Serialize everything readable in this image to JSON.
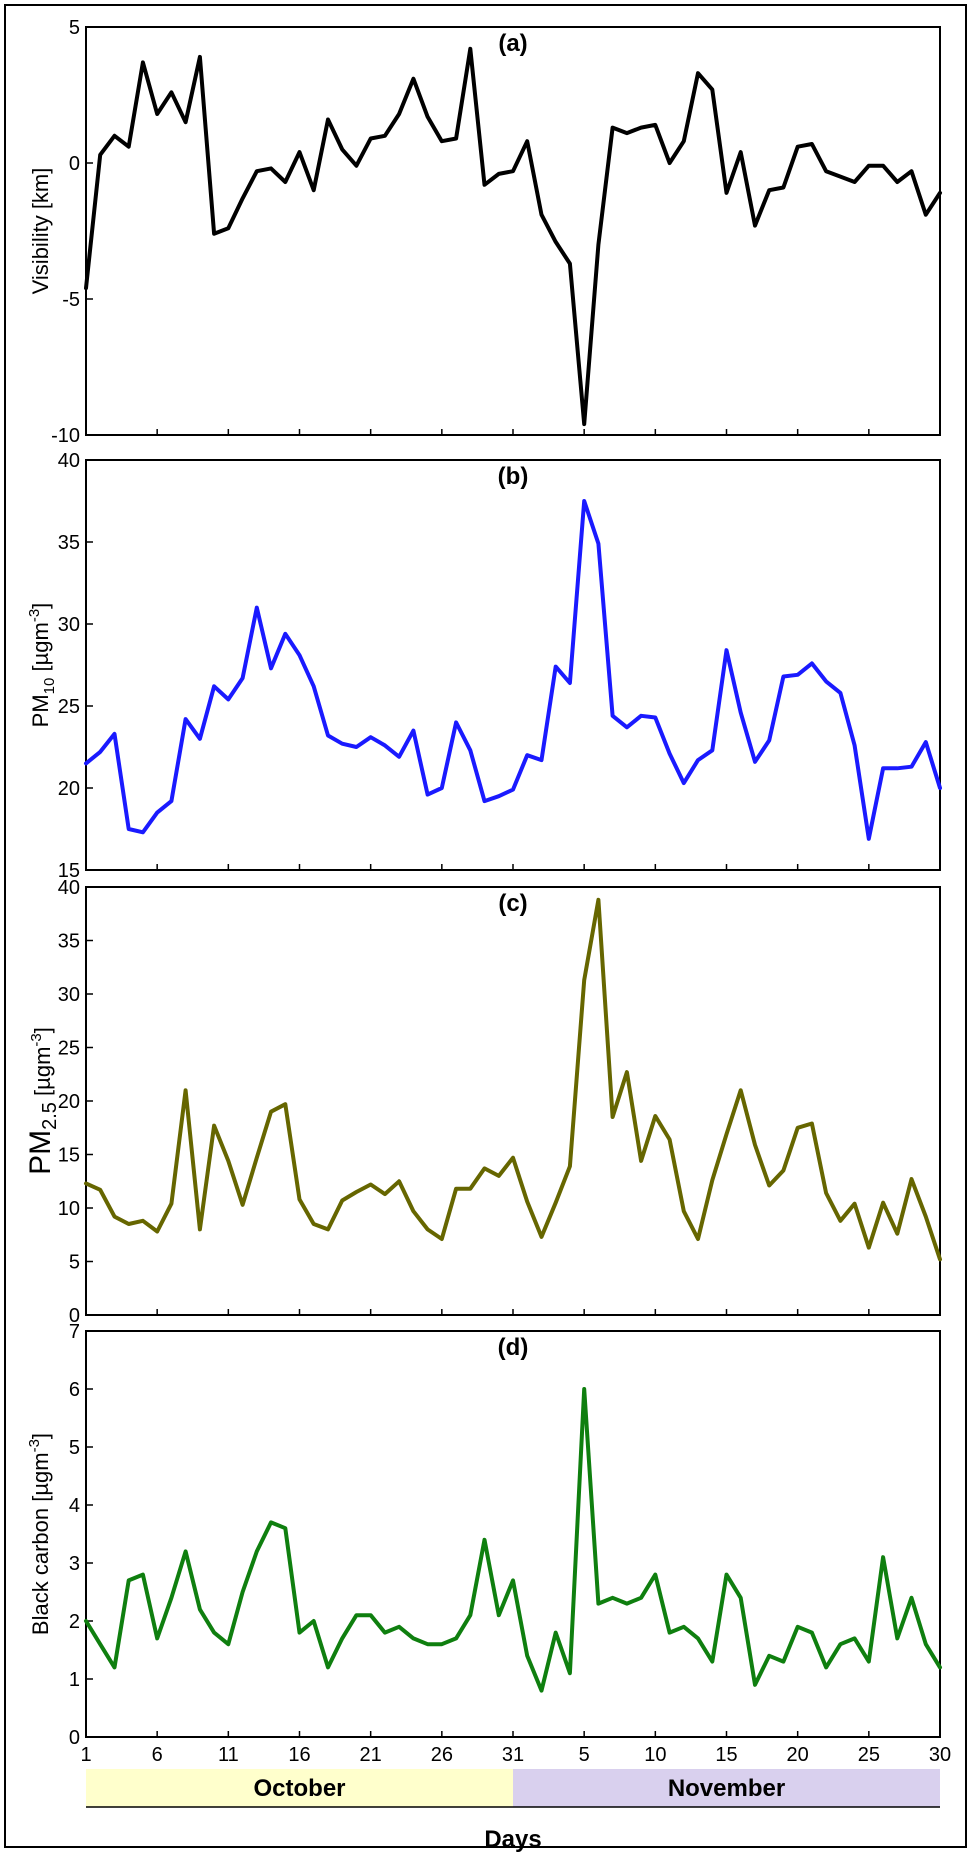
{
  "chart_data": [
    {
      "type": "line",
      "panel_label": "(a)",
      "ylabel": "Visibility [km]",
      "ylim": [
        -10,
        5
      ],
      "yticks": [
        "5",
        "0",
        "-5",
        "-10"
      ],
      "series": [
        {
          "color": "#000000",
          "values": [
            -4.6,
            0.3,
            1.0,
            0.6,
            3.7,
            1.8,
            2.6,
            1.5,
            3.9,
            -2.6,
            -2.4,
            -1.3,
            -0.3,
            -0.2,
            -0.7,
            0.4,
            -1.0,
            1.6,
            0.5,
            -0.1,
            0.9,
            1.0,
            1.8,
            3.1,
            1.7,
            0.8,
            0.9,
            4.2,
            -0.8,
            -0.4,
            -0.3,
            0.8,
            -1.9,
            -2.9,
            -3.7,
            -9.6,
            -3.0,
            1.3,
            1.1,
            1.3,
            1.4,
            0.0,
            0.8,
            3.3,
            2.7,
            -1.1,
            0.4,
            -2.3,
            -1.0,
            -0.9,
            0.6,
            0.7,
            -0.3,
            -0.5,
            -0.7,
            -0.1,
            -0.1,
            -0.7,
            -0.3,
            -1.9,
            -1.1
          ]
        }
      ]
    },
    {
      "type": "line",
      "panel_label": "(b)",
      "ylabel_main": "PM",
      "ylabel_sub": "10",
      "ylabel_unit": " [µgm",
      "ylabel_sup": "-3",
      "ylabel_end": "]",
      "ylim": [
        15,
        40
      ],
      "yticks": [
        "40",
        "35",
        "30",
        "25",
        "20",
        "15"
      ],
      "series": [
        {
          "color": "#1a1aff",
          "values": [
            21.5,
            22.2,
            23.3,
            17.5,
            17.3,
            18.5,
            19.2,
            24.2,
            23.0,
            26.2,
            25.4,
            26.7,
            31.0,
            27.3,
            29.4,
            28.1,
            26.2,
            23.2,
            22.7,
            22.5,
            23.1,
            22.6,
            21.9,
            23.5,
            19.6,
            20.0,
            24.0,
            22.3,
            19.2,
            19.5,
            19.9,
            22.0,
            21.7,
            27.4,
            26.4,
            37.5,
            34.9,
            24.4,
            23.7,
            24.4,
            24.3,
            22.1,
            20.3,
            21.7,
            22.3,
            28.4,
            24.6,
            21.6,
            22.9,
            26.8,
            26.9,
            27.6,
            26.5,
            25.8,
            22.6,
            16.9,
            21.2,
            21.2,
            21.3,
            22.8,
            20.0
          ]
        }
      ]
    },
    {
      "type": "line",
      "panel_label": "(c)",
      "ylabel_main": "PM",
      "ylabel_sub": "2.5",
      "ylabel_unit": " [µgm",
      "ylabel_sup": "-3",
      "ylabel_end": "]",
      "ylim": [
        0,
        40
      ],
      "yticks": [
        "40",
        "35",
        "30",
        "25",
        "20",
        "15",
        "10",
        "5",
        "0"
      ],
      "series": [
        {
          "color": "#666600",
          "values": [
            12.3,
            11.7,
            9.2,
            8.5,
            8.8,
            7.8,
            10.4,
            21.0,
            8.0,
            17.7,
            14.4,
            10.3,
            14.7,
            19.0,
            19.7,
            10.8,
            8.5,
            8.0,
            10.7,
            11.5,
            12.2,
            11.3,
            12.5,
            9.7,
            8.0,
            7.1,
            11.8,
            11.8,
            13.7,
            13.0,
            14.7,
            10.6,
            7.3,
            10.5,
            13.9,
            31.3,
            38.8,
            18.5,
            22.7,
            14.4,
            18.6,
            16.4,
            9.7,
            7.1,
            12.6,
            16.9,
            21.0,
            15.9,
            12.1,
            13.5,
            17.5,
            17.9,
            11.4,
            8.8,
            10.4,
            6.3,
            10.5,
            7.6,
            12.7,
            9.2,
            5.2
          ]
        }
      ]
    },
    {
      "type": "line",
      "panel_label": "(d)",
      "ylabel_main": "Black carbon",
      "ylabel_unit": " [µgm",
      "ylabel_sup": "-3",
      "ylabel_end": "]",
      "ylim": [
        0,
        7
      ],
      "yticks": [
        "7",
        "6",
        "5",
        "4",
        "3",
        "2",
        "1",
        "0"
      ],
      "series": [
        {
          "color": "#0f7f0f",
          "values": [
            2.0,
            1.6,
            1.2,
            2.7,
            2.8,
            1.7,
            2.4,
            3.2,
            2.2,
            1.8,
            1.6,
            2.5,
            3.2,
            3.7,
            3.6,
            1.8,
            2.0,
            1.2,
            1.7,
            2.1,
            2.1,
            1.8,
            1.9,
            1.7,
            1.6,
            1.6,
            1.7,
            2.1,
            3.4,
            2.1,
            2.7,
            1.4,
            0.8,
            1.8,
            1.1,
            6.0,
            2.3,
            2.4,
            2.3,
            2.4,
            2.8,
            1.8,
            1.9,
            1.7,
            1.3,
            2.8,
            2.4,
            0.9,
            1.4,
            1.3,
            1.9,
            1.8,
            1.2,
            1.6,
            1.7,
            1.3,
            3.1,
            1.7,
            2.4,
            1.6,
            1.2
          ]
        }
      ]
    }
  ],
  "x_axis": {
    "tick_labels": [
      "1",
      "6",
      "11",
      "16",
      "21",
      "26",
      "31",
      "5",
      "10",
      "15",
      "20",
      "25",
      "30"
    ],
    "months": [
      {
        "label": "October",
        "color": "#ffffcc"
      },
      {
        "label": "November",
        "color": "#d9d0ee"
      }
    ],
    "xlabel": "Days"
  }
}
